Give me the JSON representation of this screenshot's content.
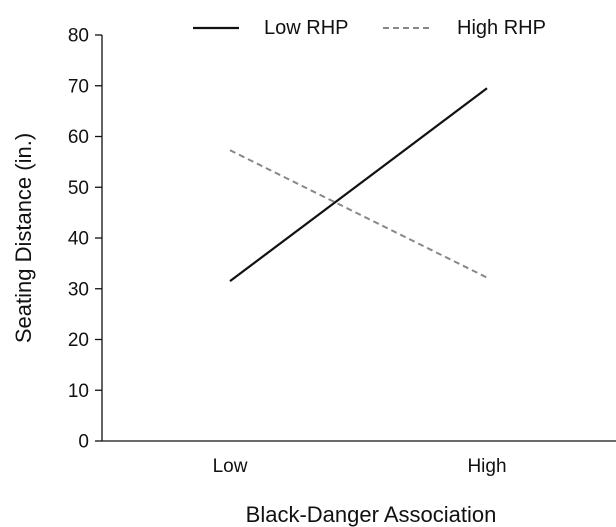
{
  "chart_data": {
    "type": "line",
    "title": "",
    "xlabel": "Black-Danger Association",
    "ylabel": "Seating Distance (in.)",
    "categories": [
      "Low",
      "High"
    ],
    "ylim": [
      0,
      80
    ],
    "yticks": [
      0,
      10,
      20,
      30,
      40,
      50,
      60,
      70,
      80
    ],
    "grid": false,
    "legend_position": "top",
    "series": [
      {
        "name": "Low RHP",
        "values": [
          31.5,
          69.5
        ],
        "color": "#111111",
        "style": "solid"
      },
      {
        "name": "High RHP",
        "values": [
          57.3,
          32.2
        ],
        "color": "#888888",
        "style": "dashed"
      }
    ]
  }
}
